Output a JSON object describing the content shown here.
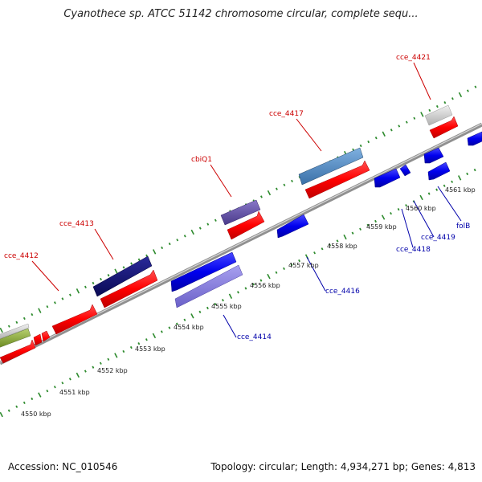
{
  "title": "Cyanothece sp. ATCC 51142 chromosome circular, complete sequ...",
  "footer": {
    "accession": "Accession: NC_010546",
    "stats": "Topology: circular; Length: 4,934,271 bp; Genes: 4,813"
  },
  "kbp_labels": [
    "4550 kbp",
    "4551 kbp",
    "4552 kbp",
    "4553 kbp",
    "4554 kbp",
    "4555 kbp",
    "4556 kbp",
    "4557 kbp",
    "4558 kbp",
    "4559 kbp",
    "4560 kbp",
    "4561 kbp"
  ],
  "gene_labels": {
    "cce_4412": "cce_4412",
    "cce_4413": "cce_4413",
    "cbiQ1": "cbiQ1",
    "cce_4417": "cce_4417",
    "cce_4421": "cce_4421",
    "cce_4414": "cce_4414",
    "cce_4416": "cce_4416",
    "cce_4418": "cce_4418",
    "cce_4419": "cce_4419",
    "folB": "folB"
  },
  "colors": {
    "cds_forward": "#ff0000",
    "cds_reverse": "#0000ee",
    "backbone": "#8c8c8c",
    "ticks": "#2e8b2e",
    "label_forward": "#cc0000",
    "label_reverse": "#0000aa"
  }
}
